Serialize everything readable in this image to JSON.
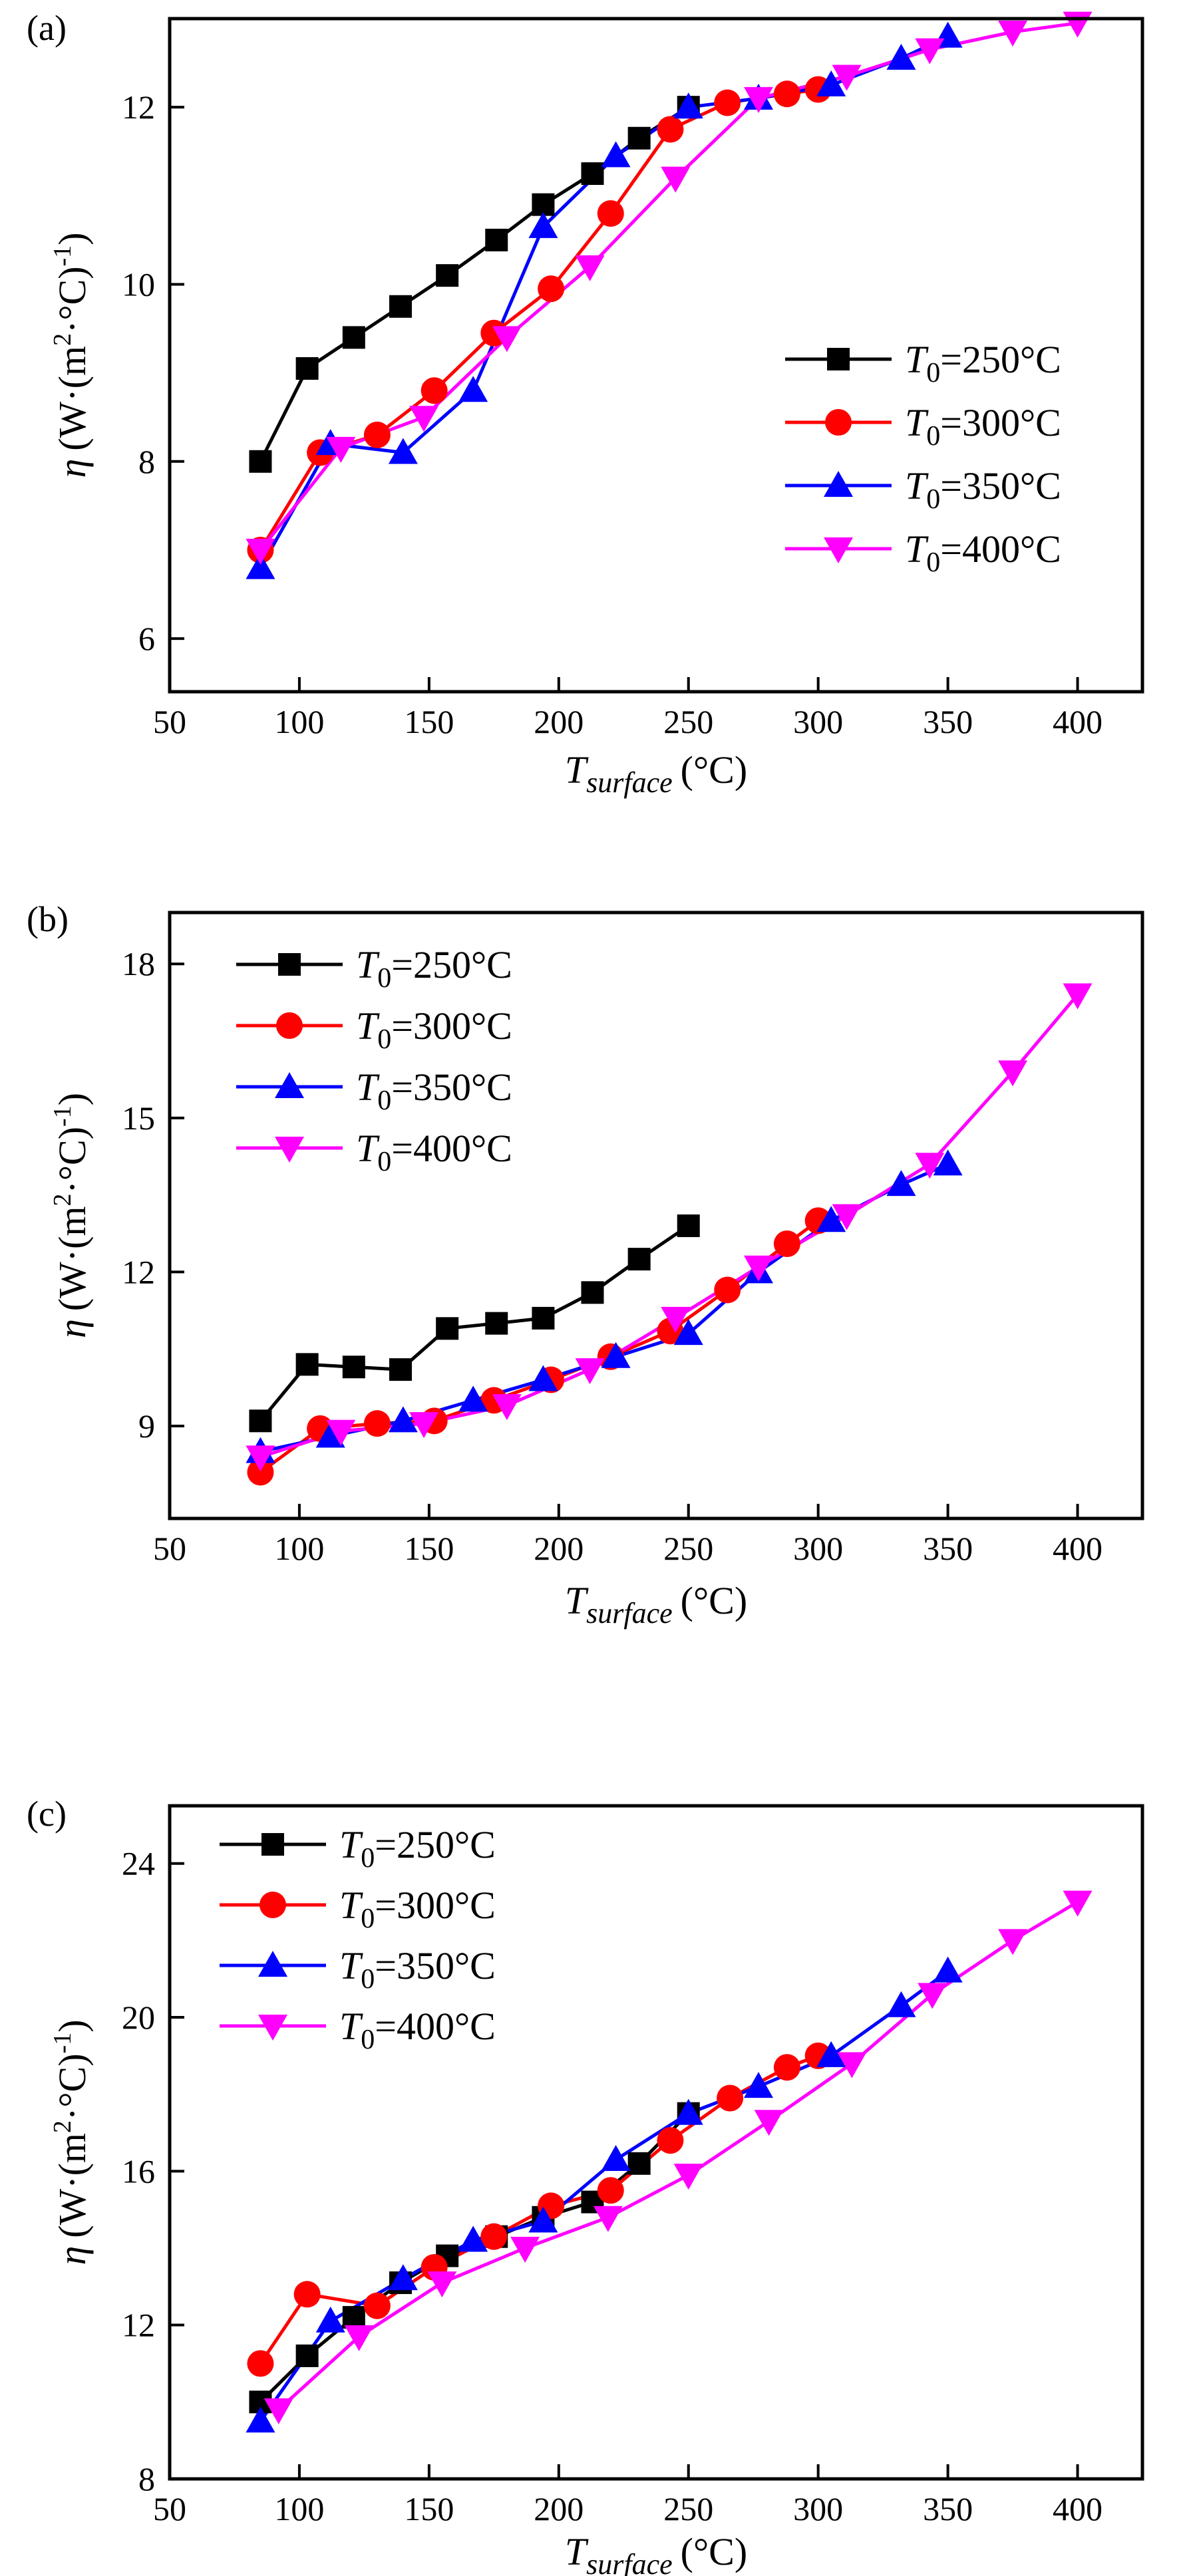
{
  "colors": {
    "series": [
      "#000000",
      "#ff0000",
      "#0000ff",
      "#ff00ff"
    ],
    "frame": "#000000"
  },
  "legend": {
    "entries": [
      {
        "base": "T",
        "sub": "0",
        "rest": "=250°C"
      },
      {
        "base": "T",
        "sub": "0",
        "rest": "=300°C"
      },
      {
        "base": "T",
        "sub": "0",
        "rest": "=350°C"
      },
      {
        "base": "T",
        "sub": "0",
        "rest": "=400°C"
      }
    ],
    "markers": [
      "square",
      "circle",
      "triangle-up",
      "triangle-down"
    ]
  },
  "axis_titles": {
    "y": {
      "symbol": "η",
      "pre": "(W·(m",
      "sup1": "2",
      "mid": "·°C)",
      "sup2": "-1",
      "post": ")"
    },
    "x": {
      "base": "T",
      "sub": "surface",
      "unit": "(°C)"
    }
  },
  "chart_data": [
    {
      "type": "line",
      "panel_label": "(a)",
      "xlim": [
        50,
        425
      ],
      "ylim": [
        5.4,
        13
      ],
      "xticks": [
        50,
        100,
        150,
        200,
        250,
        300,
        350,
        400
      ],
      "yticks": [
        6,
        8,
        10,
        12
      ],
      "legend_position": "center-right",
      "series": [
        {
          "name": "T0=250°C",
          "x": [
            85,
            103,
            121,
            139,
            157,
            176,
            194,
            213,
            231,
            250
          ],
          "y": [
            8.0,
            9.05,
            9.4,
            9.75,
            10.1,
            10.5,
            10.9,
            11.25,
            11.65,
            12.0
          ]
        },
        {
          "name": "T0=300°C",
          "x": [
            85,
            108,
            130,
            152,
            175,
            197,
            220,
            243,
            265,
            288,
            300
          ],
          "y": [
            7.0,
            8.1,
            8.3,
            8.8,
            9.45,
            9.95,
            10.8,
            11.75,
            12.05,
            12.15,
            12.2
          ]
        },
        {
          "name": "T0=350°C",
          "x": [
            85,
            112,
            140,
            167,
            194,
            222,
            250,
            277,
            305,
            332,
            350
          ],
          "y": [
            6.8,
            8.2,
            8.1,
            8.8,
            10.65,
            11.45,
            12.0,
            12.1,
            12.25,
            12.55,
            12.8
          ]
        },
        {
          "name": "T0=400°C",
          "x": [
            85,
            116,
            148,
            180,
            212,
            245,
            277,
            311,
            343,
            375,
            400
          ],
          "y": [
            7.0,
            8.15,
            8.5,
            9.4,
            10.2,
            11.2,
            12.1,
            12.35,
            12.65,
            12.85,
            12.95
          ]
        }
      ]
    },
    {
      "type": "line",
      "panel_label": "(b)",
      "xlim": [
        50,
        425
      ],
      "ylim": [
        7.2,
        19
      ],
      "xticks": [
        50,
        100,
        150,
        200,
        250,
        300,
        350,
        400
      ],
      "yticks": [
        9,
        12,
        15,
        18
      ],
      "legend_position": "top-left",
      "series": [
        {
          "name": "T0=250°C",
          "x": [
            85,
            103,
            121,
            139,
            157,
            176,
            194,
            213,
            231,
            250
          ],
          "y": [
            9.1,
            10.2,
            10.15,
            10.1,
            10.9,
            11.0,
            11.1,
            11.6,
            12.25,
            12.9
          ]
        },
        {
          "name": "T0=300°C",
          "x": [
            85,
            108,
            130,
            152,
            175,
            197,
            220,
            243,
            265,
            288,
            300
          ],
          "y": [
            8.1,
            8.95,
            9.05,
            9.1,
            9.5,
            9.9,
            10.35,
            10.85,
            11.65,
            12.55,
            13.0
          ]
        },
        {
          "name": "T0=350°C",
          "x": [
            85,
            112,
            140,
            167,
            194,
            222,
            250,
            277,
            305,
            332,
            350
          ],
          "y": [
            8.5,
            8.8,
            9.1,
            9.5,
            9.9,
            10.35,
            10.8,
            12.0,
            13.0,
            13.7,
            14.1
          ]
        },
        {
          "name": "T0=400°C",
          "x": [
            85,
            116,
            148,
            180,
            212,
            245,
            277,
            311,
            343,
            375,
            400
          ],
          "y": [
            8.4,
            8.9,
            9.05,
            9.4,
            10.1,
            11.1,
            12.1,
            13.1,
            14.1,
            15.9,
            17.4
          ]
        }
      ]
    },
    {
      "type": "line",
      "panel_label": "(c)",
      "xlim": [
        50,
        425
      ],
      "ylim": [
        8,
        25.5
      ],
      "xticks": [
        50,
        100,
        150,
        200,
        250,
        300,
        350,
        400
      ],
      "yticks": [
        8,
        12,
        16,
        20,
        24
      ],
      "legend_position": "top-left",
      "series": [
        {
          "name": "T0=250°C",
          "x": [
            85,
            103,
            121,
            139,
            157,
            176,
            194,
            213,
            231,
            250
          ],
          "y": [
            10.0,
            11.2,
            12.2,
            13.1,
            13.8,
            14.3,
            14.8,
            15.2,
            16.2,
            17.5
          ]
        },
        {
          "name": "T0=300°C",
          "x": [
            85,
            103,
            130,
            152,
            175,
            197,
            220,
            243,
            266,
            288,
            300
          ],
          "y": [
            11.0,
            12.8,
            12.5,
            13.5,
            14.3,
            15.1,
            15.5,
            16.8,
            17.9,
            18.7,
            19.0
          ]
        },
        {
          "name": "T0=350°C",
          "x": [
            85,
            112,
            140,
            167,
            194,
            222,
            250,
            277,
            305,
            332,
            350
          ],
          "y": [
            9.5,
            12.1,
            13.2,
            14.2,
            14.7,
            16.3,
            17.5,
            18.2,
            19.0,
            20.3,
            21.2
          ]
        },
        {
          "name": "T0=400°C",
          "x": [
            92,
            123,
            155,
            187,
            219,
            250,
            281,
            313,
            344,
            375,
            400
          ],
          "y": [
            9.8,
            11.7,
            13.1,
            14.0,
            14.8,
            15.9,
            17.3,
            18.8,
            20.6,
            22.0,
            23.0
          ]
        }
      ]
    }
  ]
}
